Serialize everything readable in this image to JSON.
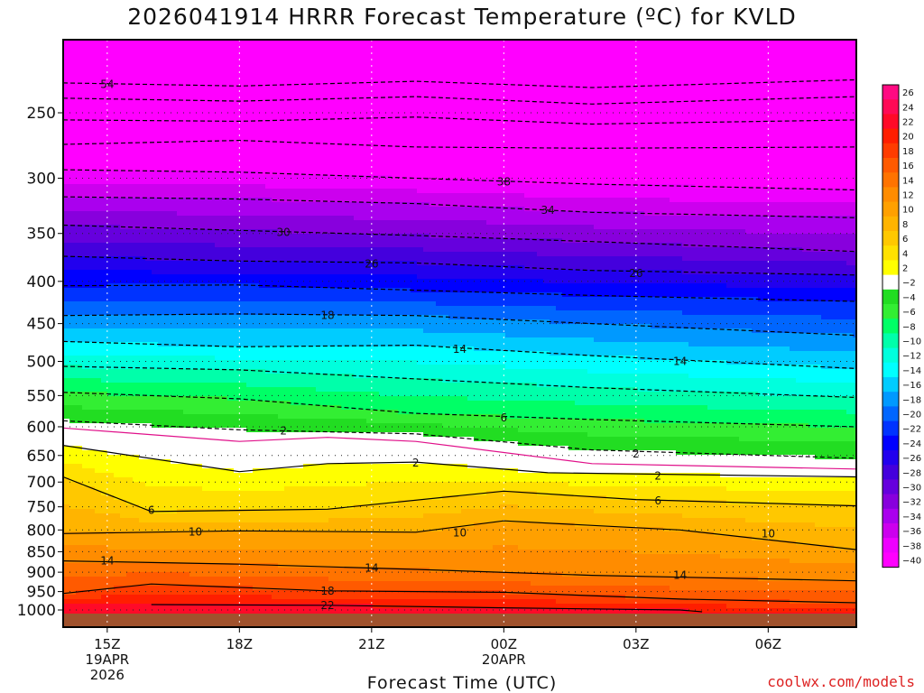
{
  "chart_data": {
    "type": "heatmap",
    "title": "2026041914 HRRR Forecast Temperature (ºC) for KVLD",
    "xlabel": "Forecast Time (UTC)",
    "ylabel": "",
    "x_ticks": [
      {
        "label": "15Z",
        "sub1": "19APR",
        "sub2": "2026",
        "hour": 1
      },
      {
        "label": "18Z",
        "sub1": "",
        "sub2": "",
        "hour": 4
      },
      {
        "label": "21Z",
        "sub1": "",
        "sub2": "",
        "hour": 7
      },
      {
        "label": "00Z",
        "sub1": "20APR",
        "sub2": "",
        "hour": 10
      },
      {
        "label": "03Z",
        "sub1": "",
        "sub2": "",
        "hour": 13
      },
      {
        "label": "06Z",
        "sub1": "",
        "sub2": "",
        "hour": 16
      }
    ],
    "x_range_hours": [
      0,
      18
    ],
    "y_ticks": [
      "250",
      "300",
      "350",
      "400",
      "450",
      "500",
      "550",
      "600",
      "650",
      "700",
      "750",
      "800",
      "850",
      "900",
      "950",
      "1000"
    ],
    "y_range_hpa": [
      1015,
      195
    ],
    "colorbar": {
      "levels": [
        26,
        24,
        22,
        20,
        18,
        16,
        14,
        12,
        10,
        8,
        6,
        4,
        2,
        -2,
        -4,
        -6,
        -8,
        -10,
        -12,
        -14,
        -16,
        -18,
        -20,
        -22,
        -24,
        -26,
        -28,
        -30,
        -32,
        -34,
        -36,
        -38,
        -40
      ],
      "colors": [
        "#ff0a82",
        "#ff0a55",
        "#ff0a28",
        "#ff1e00",
        "#ff3c00",
        "#ff5a00",
        "#ff7300",
        "#ff8c00",
        "#ffa000",
        "#ffb400",
        "#ffc800",
        "#ffe100",
        "#ffff00",
        "#ffffff",
        "#22dd22",
        "#33ee33",
        "#00ff66",
        "#00ffaa",
        "#00ffdd",
        "#00ffff",
        "#00ccff",
        "#0099ff",
        "#0066ff",
        "#0033ff",
        "#0000ff",
        "#2200ee",
        "#4400dd",
        "#6600dd",
        "#8800dd",
        "#aa00ee",
        "#cc00ee",
        "#ee00ff",
        "#ff00ff"
      ]
    },
    "contours": [
      {
        "value": -54,
        "label": "54",
        "style": "dashed",
        "points": [
          [
            0,
            230
          ],
          [
            4,
            232
          ],
          [
            8,
            229
          ],
          [
            12,
            233
          ],
          [
            18,
            228
          ]
        ]
      },
      {
        "value": -50,
        "label": "",
        "style": "dashed",
        "points": [
          [
            0,
            240
          ],
          [
            4,
            242
          ],
          [
            8,
            239
          ],
          [
            12,
            244
          ],
          [
            18,
            239
          ]
        ]
      },
      {
        "value": -46,
        "label": "",
        "style": "dashed",
        "points": [
          [
            0,
            255
          ],
          [
            4,
            256
          ],
          [
            8,
            253
          ],
          [
            12,
            258
          ],
          [
            18,
            255
          ]
        ]
      },
      {
        "value": -42,
        "label": "",
        "style": "dashed",
        "points": [
          [
            0,
            273
          ],
          [
            4,
            270
          ],
          [
            8,
            275
          ],
          [
            12,
            276
          ],
          [
            18,
            275
          ]
        ]
      },
      {
        "value": -38,
        "label": "38",
        "style": "dashed",
        "points": [
          [
            0,
            293
          ],
          [
            4,
            295
          ],
          [
            8,
            300
          ],
          [
            12,
            305
          ],
          [
            18,
            310
          ]
        ]
      },
      {
        "value": -34,
        "label": "34",
        "style": "dashed",
        "points": [
          [
            0,
            316
          ],
          [
            4,
            318
          ],
          [
            8,
            322
          ],
          [
            12,
            330
          ],
          [
            18,
            335
          ]
        ]
      },
      {
        "value": -30,
        "label": "30",
        "style": "dashed",
        "points": [
          [
            0,
            342
          ],
          [
            4,
            347
          ],
          [
            8,
            352
          ],
          [
            12,
            358
          ],
          [
            18,
            368
          ]
        ]
      },
      {
        "value": -26,
        "label": "26",
        "style": "dashed",
        "points": [
          [
            0,
            373
          ],
          [
            4,
            378
          ],
          [
            8,
            380
          ],
          [
            12,
            388
          ],
          [
            18,
            393
          ]
        ]
      },
      {
        "value": -22,
        "label": "",
        "style": "dashed",
        "points": [
          [
            0,
            405
          ],
          [
            4,
            404
          ],
          [
            8,
            410
          ],
          [
            12,
            416
          ],
          [
            18,
            423
          ]
        ]
      },
      {
        "value": -18,
        "label": "18",
        "style": "dashed",
        "points": [
          [
            0,
            440
          ],
          [
            4,
            438
          ],
          [
            8,
            440
          ],
          [
            12,
            450
          ],
          [
            18,
            465
          ]
        ]
      },
      {
        "value": -14,
        "label": "14",
        "style": "dashed",
        "points": [
          [
            0,
            473
          ],
          [
            4,
            480
          ],
          [
            8,
            478
          ],
          [
            12,
            492
          ],
          [
            18,
            510
          ]
        ]
      },
      {
        "value": -10,
        "label": "",
        "style": "dashed",
        "points": [
          [
            0,
            507
          ],
          [
            4,
            512
          ],
          [
            8,
            525
          ],
          [
            12,
            538
          ],
          [
            18,
            553
          ]
        ]
      },
      {
        "value": -6,
        "label": "6",
        "style": "dashed",
        "points": [
          [
            0,
            545
          ],
          [
            4,
            555
          ],
          [
            8,
            578
          ],
          [
            12,
            588
          ],
          [
            18,
            600
          ]
        ]
      },
      {
        "value": -2,
        "label": "2",
        "style": "dashed",
        "points": [
          [
            0,
            590
          ],
          [
            4,
            605
          ],
          [
            8,
            612
          ],
          [
            12,
            640
          ],
          [
            18,
            655
          ]
        ]
      },
      {
        "value": 0,
        "label": "",
        "style": "magenta",
        "points": [
          [
            0,
            602
          ],
          [
            4,
            625
          ],
          [
            6,
            618
          ],
          [
            8,
            625
          ],
          [
            12,
            665
          ],
          [
            18,
            675
          ]
        ]
      },
      {
        "value": 2,
        "label": "2",
        "style": "solid",
        "points": [
          [
            0,
            632
          ],
          [
            4,
            680
          ],
          [
            6,
            665
          ],
          [
            8,
            662
          ],
          [
            11,
            682
          ],
          [
            18,
            690
          ]
        ]
      },
      {
        "value": 6,
        "label": "6",
        "style": "solid",
        "points": [
          [
            0,
            690
          ],
          [
            2,
            760
          ],
          [
            6,
            755
          ],
          [
            10,
            718
          ],
          [
            13,
            735
          ],
          [
            18,
            748
          ]
        ]
      },
      {
        "value": 10,
        "label": "10",
        "style": "solid",
        "points": [
          [
            0,
            808
          ],
          [
            4,
            802
          ],
          [
            8,
            805
          ],
          [
            10,
            780
          ],
          [
            14,
            800
          ],
          [
            18,
            845
          ]
        ]
      },
      {
        "value": 14,
        "label": "14",
        "style": "solid",
        "points": [
          [
            0,
            872
          ],
          [
            4,
            880
          ],
          [
            8,
            893
          ],
          [
            12,
            908
          ],
          [
            18,
            922
          ]
        ]
      },
      {
        "value": 18,
        "label": "18",
        "style": "solid",
        "points": [
          [
            0,
            955
          ],
          [
            2,
            930
          ],
          [
            6,
            948
          ],
          [
            10,
            952
          ],
          [
            14,
            970
          ],
          [
            18,
            980
          ]
        ]
      },
      {
        "value": 22,
        "label": "22",
        "style": "solid",
        "points": [
          [
            2,
            985
          ],
          [
            6,
            987
          ],
          [
            10,
            994
          ],
          [
            14,
            1000
          ],
          [
            14.5,
            1005
          ]
        ]
      }
    ],
    "contour_labels": [
      {
        "text": "54",
        "hour": 1,
        "hpa": 231
      },
      {
        "text": "38",
        "hour": 10,
        "hpa": 303
      },
      {
        "text": "34",
        "hour": 11,
        "hpa": 328
      },
      {
        "text": "30",
        "hour": 5,
        "hpa": 349
      },
      {
        "text": "26",
        "hour": 7,
        "hpa": 381
      },
      {
        "text": "26",
        "hour": 13,
        "hpa": 391
      },
      {
        "text": "18",
        "hour": 6,
        "hpa": 440
      },
      {
        "text": "14",
        "hour": 9,
        "hpa": 483
      },
      {
        "text": "14",
        "hour": 14,
        "hpa": 500
      },
      {
        "text": "6",
        "hour": 10,
        "hpa": 585
      },
      {
        "text": "2",
        "hour": 5,
        "hpa": 607
      },
      {
        "text": "2",
        "hour": 13,
        "hpa": 647
      },
      {
        "text": "2",
        "hour": 8,
        "hpa": 664
      },
      {
        "text": "2",
        "hour": 13.5,
        "hpa": 688
      },
      {
        "text": "6",
        "hour": 2,
        "hpa": 757
      },
      {
        "text": "6",
        "hour": 13.5,
        "hpa": 738
      },
      {
        "text": "10",
        "hour": 3,
        "hpa": 804
      },
      {
        "text": "10",
        "hour": 9,
        "hpa": 806
      },
      {
        "text": "10",
        "hour": 16,
        "hpa": 808
      },
      {
        "text": "14",
        "hour": 1,
        "hpa": 872
      },
      {
        "text": "14",
        "hour": 7,
        "hpa": 890
      },
      {
        "text": "14",
        "hour": 14,
        "hpa": 908
      },
      {
        "text": "18",
        "hour": 6,
        "hpa": 948
      },
      {
        "text": "22",
        "hour": 6,
        "hpa": 988
      }
    ]
  },
  "footer": {
    "credit": "coolwx.com/models"
  }
}
